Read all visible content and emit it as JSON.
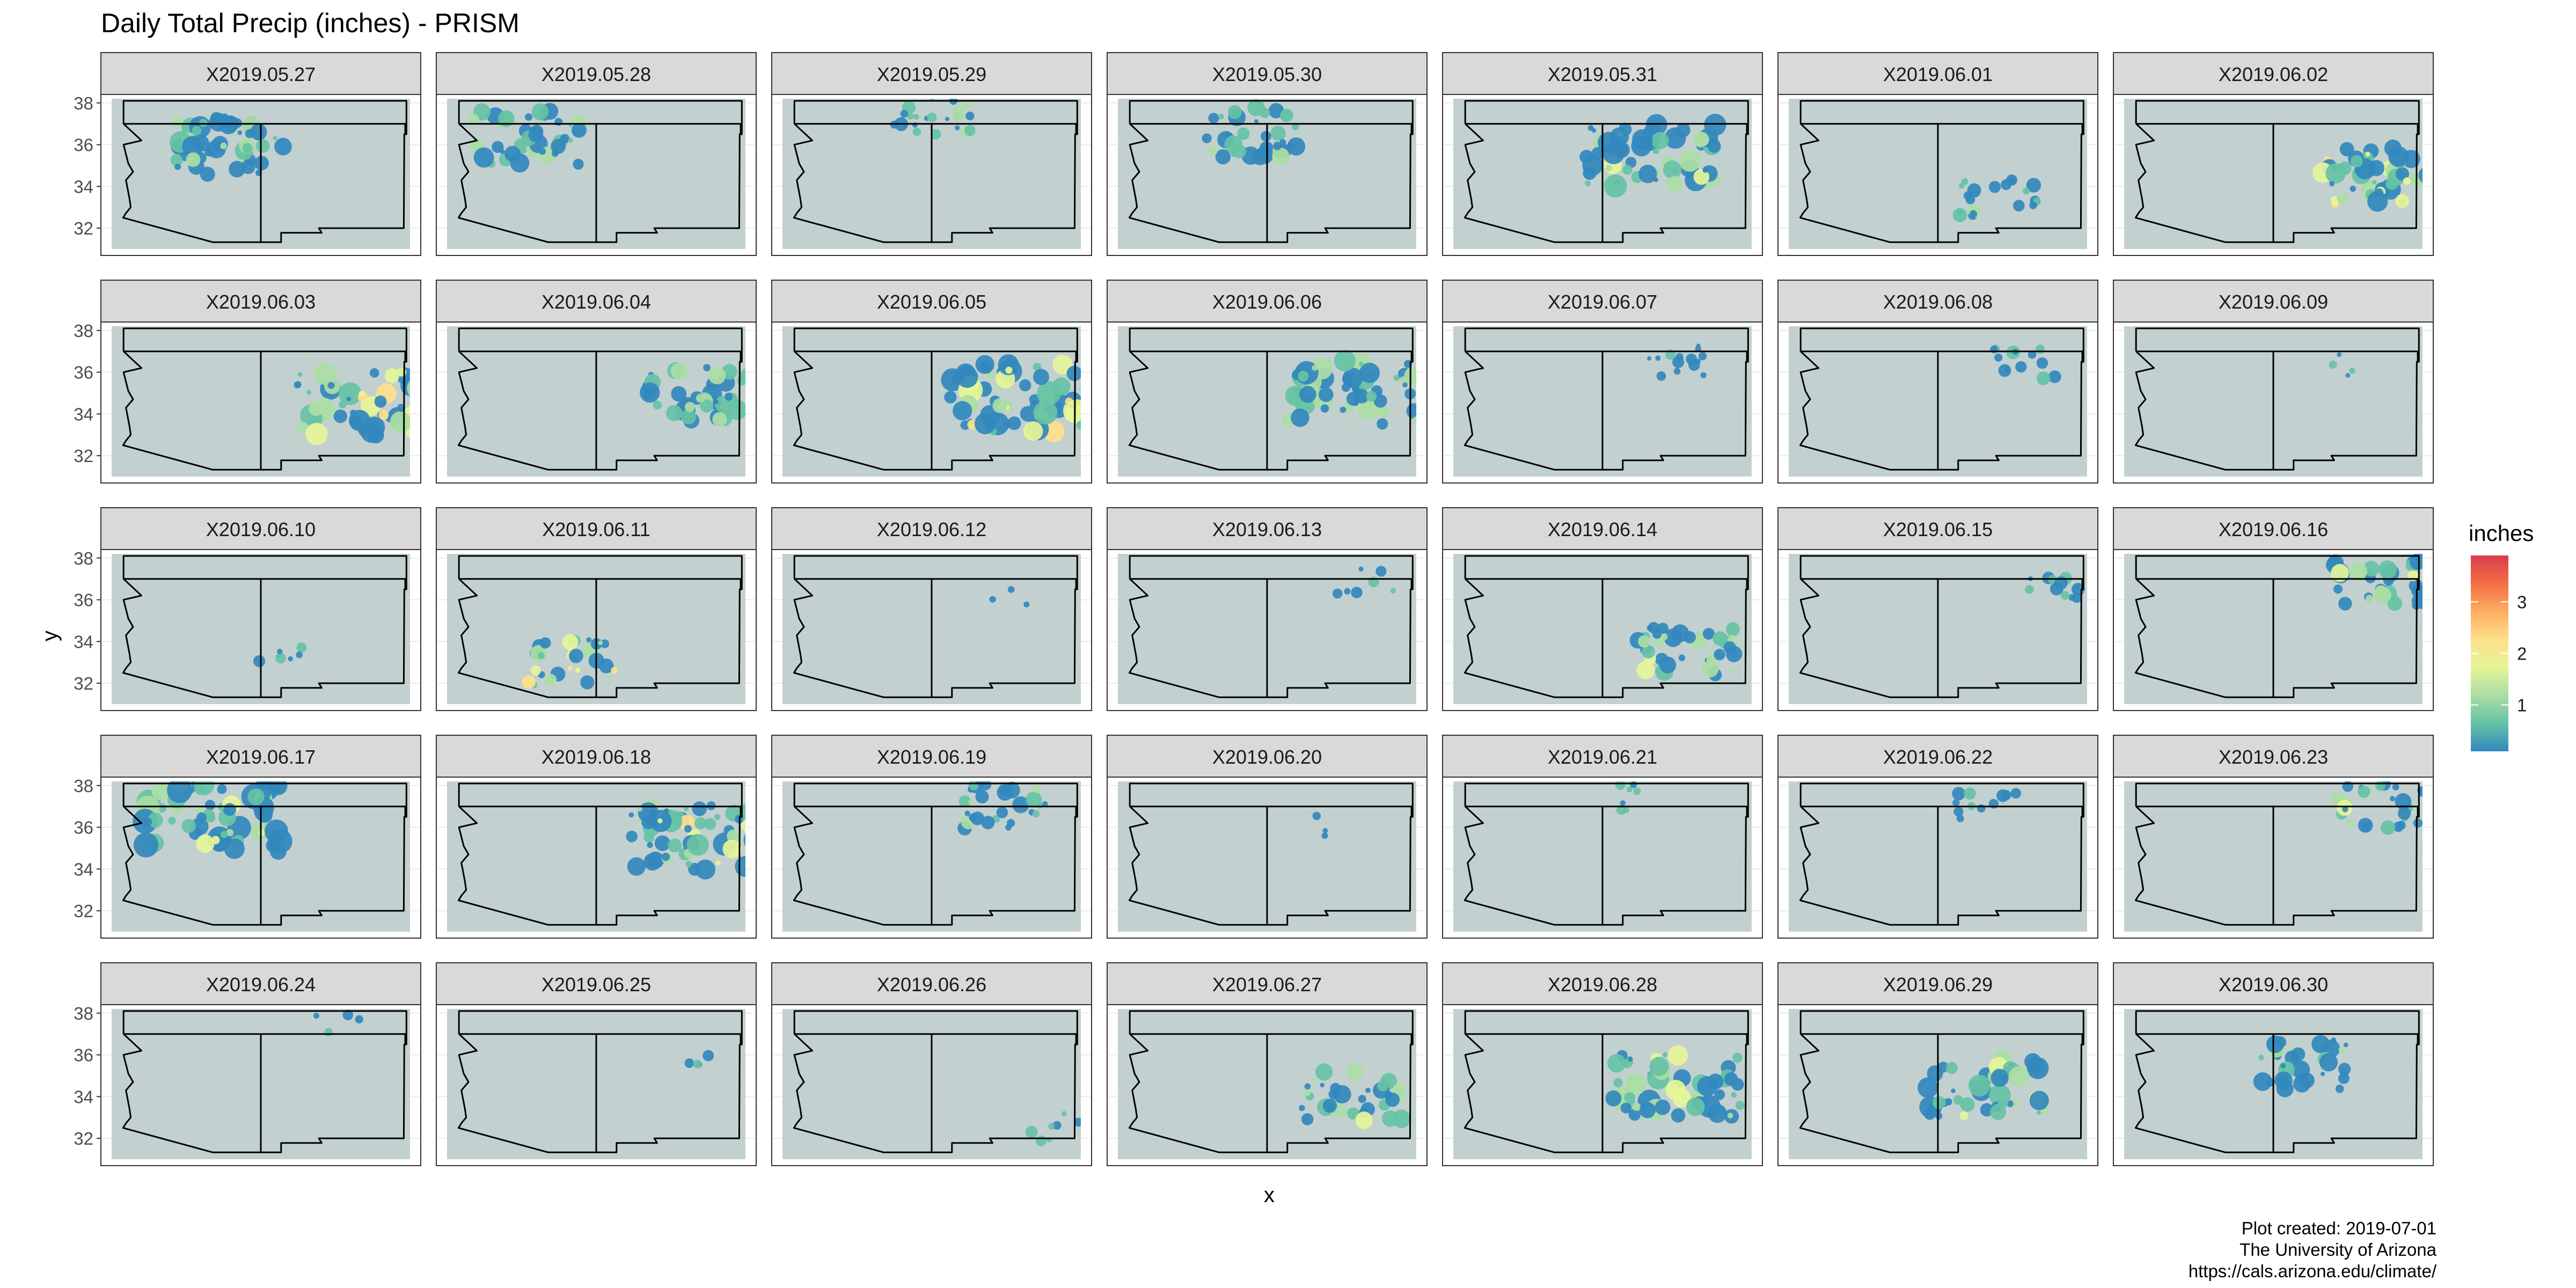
{
  "chart_data": {
    "type": "heatmap",
    "title": "Daily Total Precip (inches) - PRISM",
    "xlabel": "x",
    "ylabel": "y",
    "y_ticks": [
      "32",
      "34",
      "36",
      "38"
    ],
    "ylim": [
      31,
      38.2
    ],
    "xlim": [
      -115.3,
      -102.8
    ],
    "grid": true,
    "legend": {
      "title": "inches",
      "position": "right",
      "ticks": [
        "1",
        "2",
        "3"
      ],
      "range": [
        0.1,
        3.9
      ],
      "colors": [
        "#3288bd",
        "#66c2a5",
        "#abdda4",
        "#e6f598",
        "#fee08b",
        "#fdae61",
        "#f46d43",
        "#d53e4f"
      ]
    },
    "background_color": "#c3d0d0",
    "panels": [
      {
        "label": "X2019.05.27",
        "coverage": 0.35,
        "peak": 1.2,
        "center": [
          -110.5,
          36.0
        ]
      },
      {
        "label": "X2019.05.28",
        "coverage": 0.3,
        "peak": 1.4,
        "center": [
          -112.0,
          36.3
        ]
      },
      {
        "label": "X2019.05.29",
        "coverage": 0.15,
        "peak": 1.0,
        "center": [
          -109.0,
          37.4
        ]
      },
      {
        "label": "X2019.05.30",
        "coverage": 0.25,
        "peak": 1.0,
        "center": [
          -109.5,
          36.6
        ]
      },
      {
        "label": "X2019.05.31",
        "coverage": 0.4,
        "peak": 1.6,
        "center": [
          -107.0,
          35.5
        ]
      },
      {
        "label": "X2019.06.01",
        "coverage": 0.15,
        "peak": 1.1,
        "center": [
          -106.5,
          33.5
        ]
      },
      {
        "label": "X2019.06.02",
        "coverage": 0.35,
        "peak": 2.0,
        "center": [
          -104.5,
          34.5
        ]
      },
      {
        "label": "X2019.06.03",
        "coverage": 0.4,
        "peak": 2.2,
        "center": [
          -105.0,
          34.5
        ]
      },
      {
        "label": "X2019.06.04",
        "coverage": 0.3,
        "peak": 1.5,
        "center": [
          -105.0,
          35.0
        ]
      },
      {
        "label": "X2019.06.05",
        "coverage": 0.45,
        "peak": 2.0,
        "center": [
          -105.5,
          34.8
        ]
      },
      {
        "label": "X2019.06.06",
        "coverage": 0.4,
        "peak": 1.5,
        "center": [
          -105.5,
          35.0
        ]
      },
      {
        "label": "X2019.06.07",
        "coverage": 0.1,
        "peak": 0.8,
        "center": [
          -106.0,
          36.5
        ]
      },
      {
        "label": "X2019.06.08",
        "coverage": 0.1,
        "peak": 0.8,
        "center": [
          -105.5,
          36.5
        ]
      },
      {
        "label": "X2019.06.09",
        "coverage": 0.03,
        "peak": 0.5,
        "center": [
          -106.0,
          36.5
        ]
      },
      {
        "label": "X2019.06.10",
        "coverage": 0.05,
        "peak": 0.8,
        "center": [
          -108.0,
          33.0
        ]
      },
      {
        "label": "X2019.06.11",
        "coverage": 0.2,
        "peak": 2.0,
        "center": [
          -110.0,
          33.0
        ]
      },
      {
        "label": "X2019.06.12",
        "coverage": 0.02,
        "peak": 0.5,
        "center": [
          -106.0,
          36.0
        ]
      },
      {
        "label": "X2019.06.13",
        "coverage": 0.05,
        "peak": 0.7,
        "center": [
          -105.0,
          37.0
        ]
      },
      {
        "label": "X2019.06.14",
        "coverage": 0.25,
        "peak": 1.4,
        "center": [
          -105.5,
          33.5
        ]
      },
      {
        "label": "X2019.06.15",
        "coverage": 0.08,
        "peak": 0.9,
        "center": [
          -104.5,
          36.5
        ]
      },
      {
        "label": "X2019.06.16",
        "coverage": 0.25,
        "peak": 1.5,
        "center": [
          -104.5,
          36.8
        ]
      },
      {
        "label": "X2019.06.17",
        "coverage": 0.45,
        "peak": 1.6,
        "center": [
          -111.0,
          36.5
        ]
      },
      {
        "label": "X2019.06.18",
        "coverage": 0.4,
        "peak": 2.0,
        "center": [
          -105.0,
          35.5
        ]
      },
      {
        "label": "X2019.06.19",
        "coverage": 0.2,
        "peak": 1.0,
        "center": [
          -106.0,
          37.0
        ]
      },
      {
        "label": "X2019.06.20",
        "coverage": 0.01,
        "peak": 0.5,
        "center": [
          -106.0,
          36.0
        ]
      },
      {
        "label": "X2019.06.21",
        "coverage": 0.05,
        "peak": 0.8,
        "center": [
          -108.0,
          37.5
        ]
      },
      {
        "label": "X2019.06.22",
        "coverage": 0.08,
        "peak": 0.9,
        "center": [
          -107.0,
          37.0
        ]
      },
      {
        "label": "X2019.06.23",
        "coverage": 0.2,
        "peak": 1.5,
        "center": [
          -104.5,
          37.0
        ]
      },
      {
        "label": "X2019.06.24",
        "coverage": 0.03,
        "peak": 0.6,
        "center": [
          -106.0,
          37.5
        ]
      },
      {
        "label": "X2019.06.25",
        "coverage": 0.03,
        "peak": 0.6,
        "center": [
          -105.0,
          36.0
        ]
      },
      {
        "label": "X2019.06.26",
        "coverage": 0.05,
        "peak": 0.8,
        "center": [
          -104.0,
          32.5
        ]
      },
      {
        "label": "X2019.06.27",
        "coverage": 0.25,
        "peak": 1.4,
        "center": [
          -105.5,
          34.0
        ]
      },
      {
        "label": "X2019.06.28",
        "coverage": 0.4,
        "peak": 1.6,
        "center": [
          -106.0,
          34.5
        ]
      },
      {
        "label": "X2019.06.29",
        "coverage": 0.35,
        "peak": 1.5,
        "center": [
          -107.0,
          34.5
        ]
      },
      {
        "label": "X2019.06.30",
        "coverage": 0.25,
        "peak": 1.2,
        "center": [
          -107.5,
          35.5
        ]
      }
    ]
  },
  "caption": {
    "line1": "Plot created: 2019-07-01",
    "line2": "The University of Arizona",
    "line3": "https://cals.arizona.edu/climate/"
  }
}
